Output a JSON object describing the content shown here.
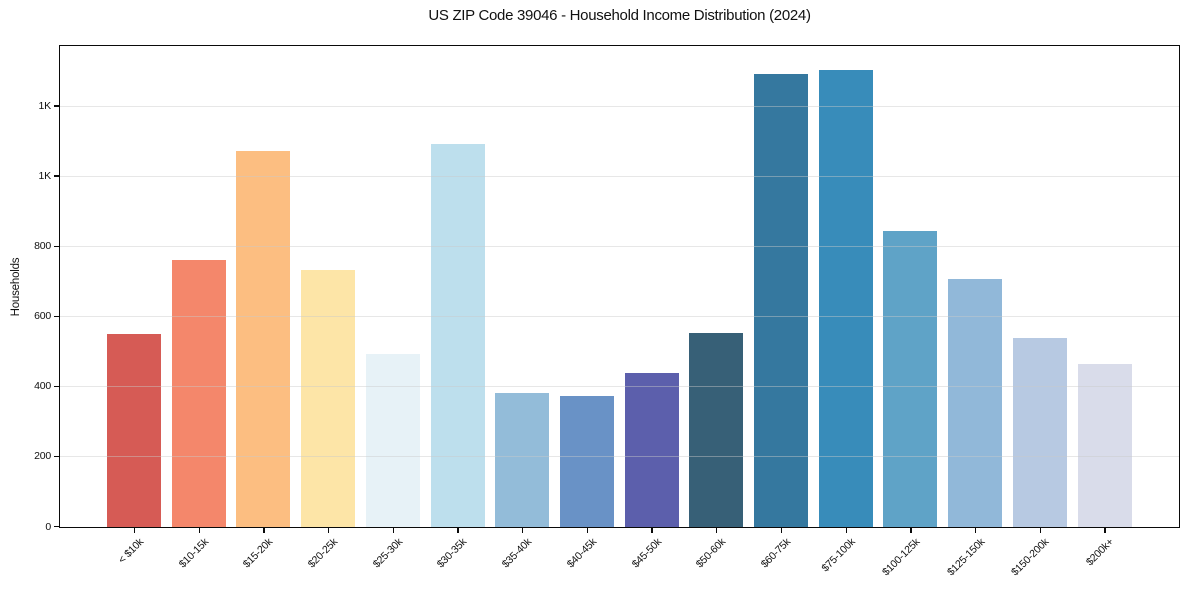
{
  "figure": {
    "kind": "static-bar-chart-screenshot"
  },
  "chart_data": {
    "type": "bar",
    "title": "US ZIP Code 39046 - Household Income Distribution (2024)",
    "xlabel": "",
    "ylabel": "Households",
    "categories": [
      "< $10k",
      "$10-15k",
      "$15-20k",
      "$20-25k",
      "$25-30k",
      "$30-35k",
      "$35-40k",
      "$40-45k",
      "$45-50k",
      "$50-60k",
      "$60-75k",
      "$75-100k",
      "$100-125k",
      "$125-150k",
      "$150-200k",
      "$200k+"
    ],
    "values": [
      552,
      763,
      1072,
      734,
      494,
      1094,
      383,
      373,
      439,
      553,
      1292,
      1304,
      846,
      707,
      540,
      466
    ],
    "bar_colors": [
      "#d65b55",
      "#f4876b",
      "#fcbe81",
      "#fde5a7",
      "#e7f2f7",
      "#bddfed",
      "#93bcd9",
      "#6992c6",
      "#5c5fac",
      "#376077",
      "#35789f",
      "#388cba",
      "#5fa3c7",
      "#91b8d9",
      "#b7c9e2",
      "#d9dcea"
    ],
    "ylim": [
      0,
      1370
    ],
    "yticks": [
      {
        "label": "0",
        "value": 0
      },
      {
        "label": "200",
        "value": 200
      },
      {
        "label": "400",
        "value": 400
      },
      {
        "label": "600",
        "value": 600
      },
      {
        "label": "800",
        "value": 800
      },
      {
        "label": "1K",
        "value": 1000
      },
      {
        "label": "1K",
        "value": 1200
      }
    ],
    "grid": "horizontal-light",
    "legend": "none"
  },
  "colors": {
    "background": "#ffffff",
    "spine": "#0a0a0a",
    "grid": "#e8e8e8",
    "text": "#111111"
  }
}
